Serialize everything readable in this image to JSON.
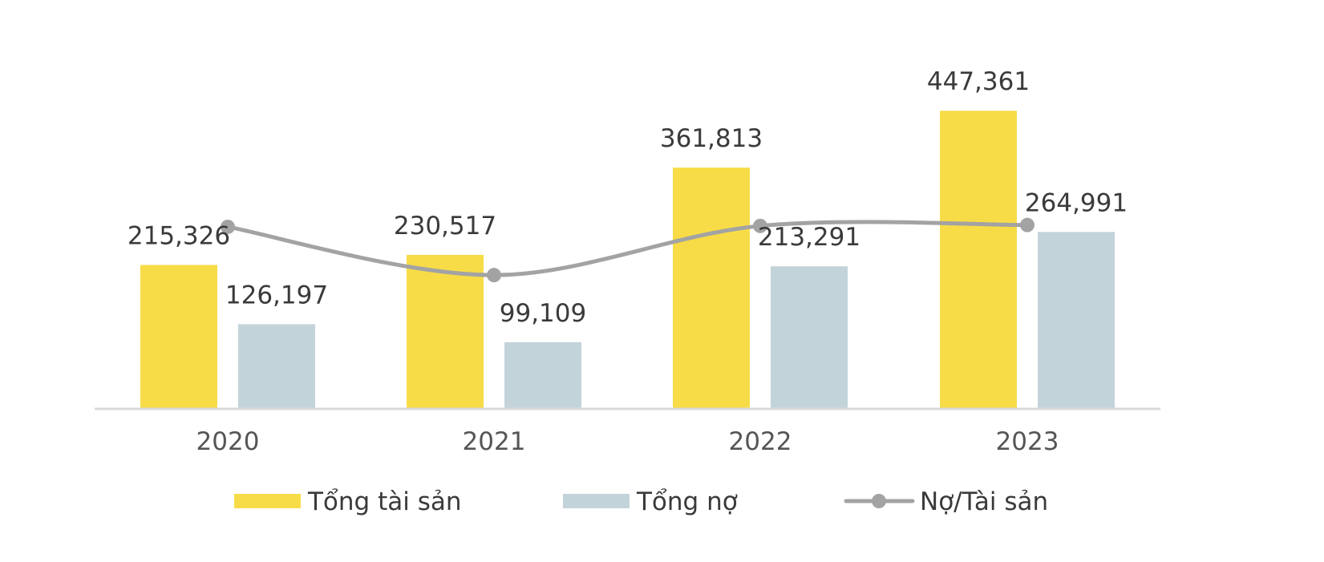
{
  "chart_data": {
    "type": "bar",
    "categories": [
      "2020",
      "2021",
      "2022",
      "2023"
    ],
    "series": [
      {
        "name": "Tổng tài sản",
        "kind": "bar",
        "color": "#F7DC47",
        "values": [
          215326,
          230517,
          361813,
          447361
        ],
        "labels": [
          "215,326",
          "230,517",
          "361,813",
          "447,361"
        ]
      },
      {
        "name": "Tổng nợ",
        "kind": "bar",
        "color": "#C3D3DA",
        "values": [
          126197,
          99109,
          213291,
          264991
        ],
        "labels": [
          "126,197",
          "99,109",
          "213,291",
          "264,991"
        ]
      },
      {
        "name": "Nợ/Tài sản",
        "kind": "line",
        "color": "#A3A3A3",
        "values": [
          0.586,
          0.43,
          0.589,
          0.592
        ]
      }
    ],
    "ylim": [
      0,
      456000
    ],
    "line_ylim": [
      0,
      0.98
    ],
    "grid": false,
    "legend_position": "bottom",
    "title": "",
    "xlabel": "",
    "ylabel": ""
  }
}
